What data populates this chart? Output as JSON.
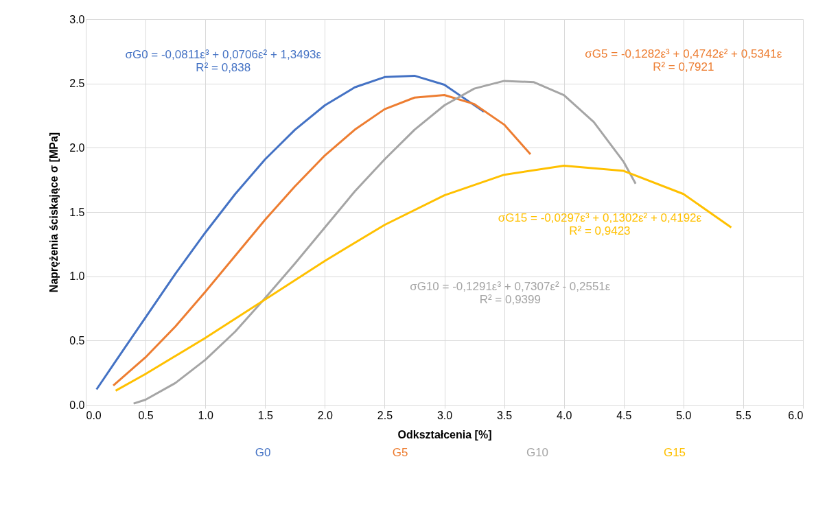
{
  "chart_data": {
    "type": "line",
    "xlabel": "Odkształcenia [%]",
    "ylabel": "Naprężenia ściskające σ [MPa]",
    "xlim": [
      0,
      6
    ],
    "ylim": [
      0,
      3
    ],
    "xticks": [
      {
        "value": 0,
        "label": "0.0"
      },
      {
        "value": 0.5,
        "label": "0.5"
      },
      {
        "value": 1,
        "label": "1.0"
      },
      {
        "value": 1.5,
        "label": "1.5"
      },
      {
        "value": 2,
        "label": "2.0"
      },
      {
        "value": 2.5,
        "label": "2.5"
      },
      {
        "value": 3,
        "label": "3.0"
      },
      {
        "value": 3.5,
        "label": "3.5"
      },
      {
        "value": 4,
        "label": "4.0"
      },
      {
        "value": 4.5,
        "label": "4.5"
      },
      {
        "value": 5,
        "label": "5.0"
      },
      {
        "value": 5.5,
        "label": "5.5"
      },
      {
        "value": 6,
        "label": "6.0"
      }
    ],
    "yticks": [
      {
        "value": 0,
        "label": "0.0"
      },
      {
        "value": 0.5,
        "label": "0.5"
      },
      {
        "value": 1,
        "label": "1.0"
      },
      {
        "value": 1.5,
        "label": "1.5"
      },
      {
        "value": 2,
        "label": "2.0"
      },
      {
        "value": 2.5,
        "label": "2.5"
      },
      {
        "value": 3,
        "label": "3.0"
      }
    ],
    "grid": true,
    "marker": "none",
    "line_style": "solid",
    "series": [
      {
        "name": "G0",
        "color": "#4472c4",
        "x": [
          0.09,
          0.25,
          0.5,
          0.75,
          1,
          1.25,
          1.5,
          1.75,
          2,
          2.25,
          2.5,
          2.75,
          3,
          3.33
        ],
        "values": [
          0.12,
          0.34,
          0.68,
          1.02,
          1.34,
          1.64,
          1.91,
          2.14,
          2.33,
          2.47,
          2.55,
          2.56,
          2.49,
          2.28
        ]
      },
      {
        "name": "G5",
        "color": "#ed7d31",
        "x": [
          0.23,
          0.5,
          0.75,
          1,
          1.25,
          1.5,
          1.75,
          2,
          2.25,
          2.5,
          2.75,
          3,
          3.25,
          3.5,
          3.72
        ],
        "values": [
          0.15,
          0.37,
          0.61,
          0.88,
          1.16,
          1.44,
          1.7,
          1.94,
          2.14,
          2.3,
          2.39,
          2.41,
          2.34,
          2.18,
          1.95
        ]
      },
      {
        "name": "G10",
        "color": "#a5a5a5",
        "x": [
          0.4,
          0.5,
          0.75,
          1,
          1.25,
          1.5,
          1.75,
          2,
          2.25,
          2.5,
          2.75,
          3,
          3.25,
          3.5,
          3.75,
          4,
          4.25,
          4.5,
          4.6
        ],
        "values": [
          0.01,
          0.04,
          0.17,
          0.35,
          0.57,
          0.83,
          1.1,
          1.38,
          1.66,
          1.91,
          2.14,
          2.33,
          2.46,
          2.52,
          2.51,
          2.41,
          2.2,
          1.89,
          1.72
        ]
      },
      {
        "name": "G15",
        "color": "#ffc000",
        "x": [
          0.25,
          0.5,
          1,
          1.5,
          2,
          2.5,
          3,
          3.5,
          4,
          4.5,
          5,
          5.4
        ],
        "values": [
          0.11,
          0.24,
          0.52,
          0.82,
          1.12,
          1.4,
          1.63,
          1.79,
          1.86,
          1.82,
          1.64,
          1.38
        ]
      }
    ],
    "annotations": [
      "σG0 = -0,0811ε³ + 0,0706ε² + 1,3493ε\nR² = 0,838",
      "σG5 = -0,1282ε³ + 0,4742ε² + 0,5341ε\nR² = 0,7921",
      "σG10 = -0,1291ε³ + 0,7307ε² - 0,2551ε\nR² = 0,9399",
      "σG15 = -0,0297ε³ + 0,1302ε² + 0,4192ε\nR² = 0,9423"
    ]
  }
}
